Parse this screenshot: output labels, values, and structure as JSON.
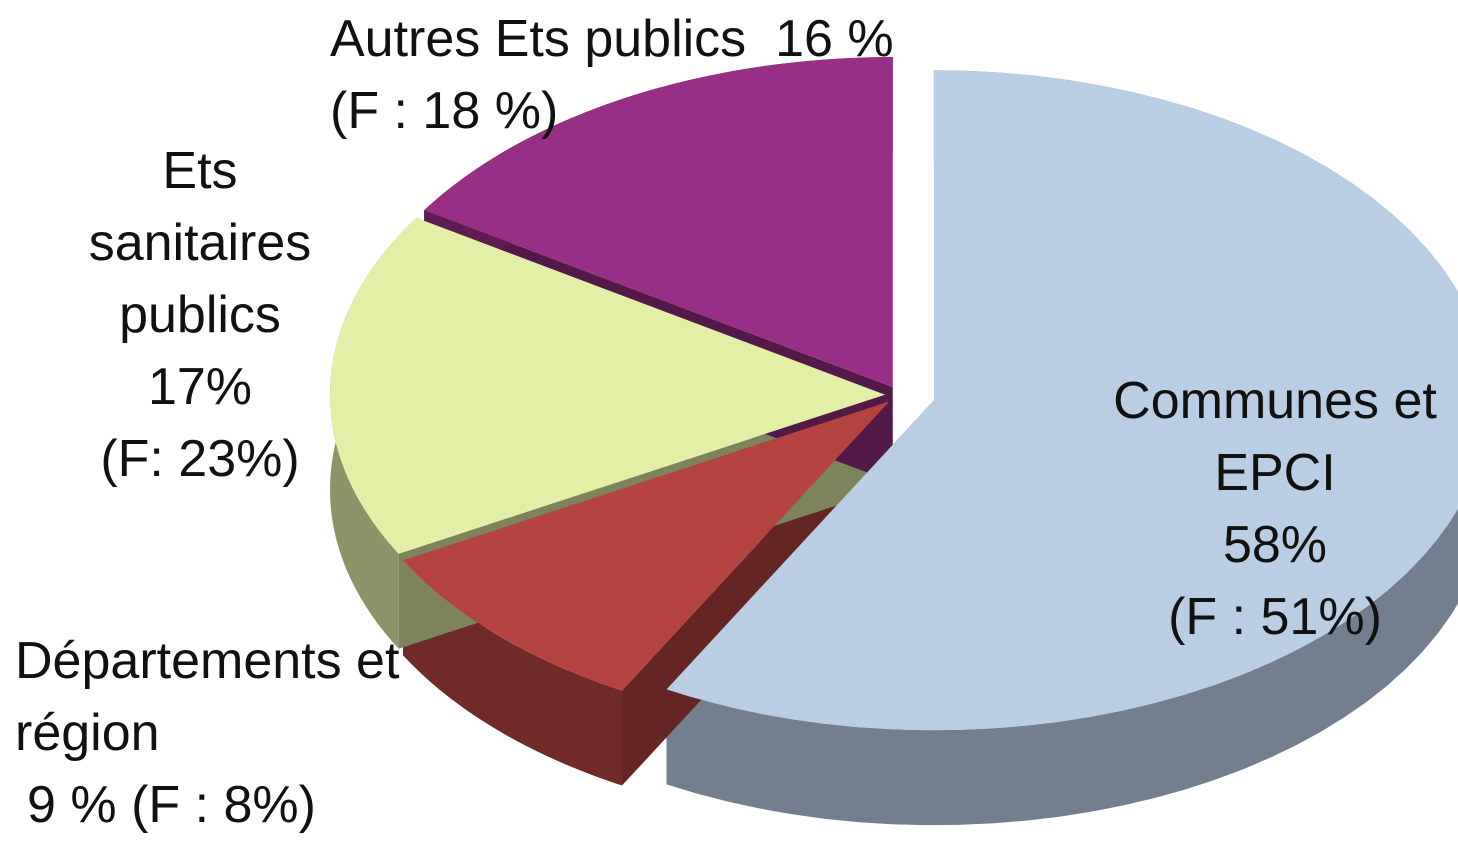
{
  "chart_data": {
    "type": "pie3d",
    "categories": [
      "Communes et EPCI",
      "Départements et région",
      "Ets sanitaires publics",
      "Autres Ets publics"
    ],
    "values": [
      58,
      9,
      17,
      16
    ],
    "value_labels": [
      "58%",
      "9 %",
      "17%",
      "16 %"
    ],
    "colors": [
      "#b9cde5",
      "#b5433f",
      "#e3eea6",
      "#962f85"
    ],
    "comparison": {
      "values": [
        51,
        8,
        23,
        18
      ],
      "value_labels": [
        "(F : 51%)",
        "(F : 8%)",
        "(F: 23%)",
        "(F : 18 %)"
      ]
    }
  }
}
